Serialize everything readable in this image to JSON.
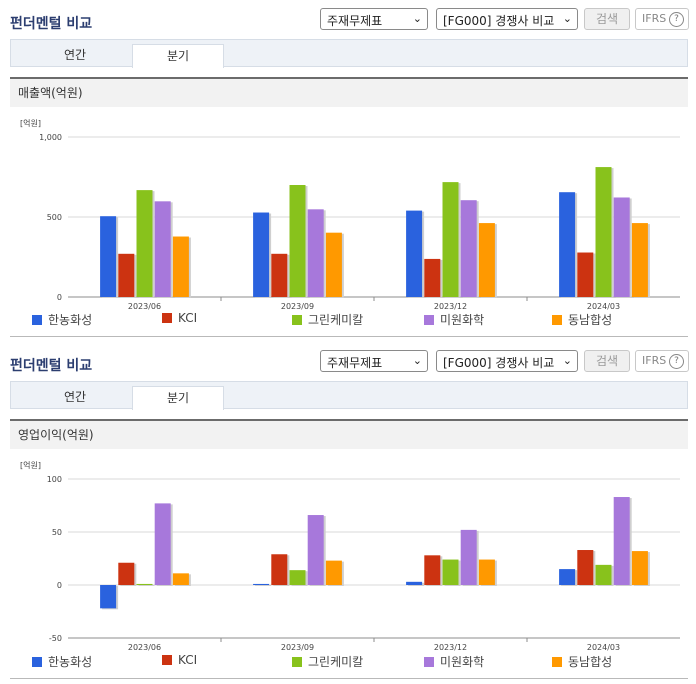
{
  "panels": [
    {
      "title": "펀더멘털 비교",
      "select_statement": "주재무제표",
      "select_compare": "[FG000] 경쟁사 비교",
      "search_label": "검색",
      "ifrs_label": "IFRS",
      "help_glyph": "?",
      "tabs": [
        {
          "label": "연간"
        },
        {
          "label": "분기"
        }
      ],
      "active_tab": 1,
      "metric_label": "매출액(억원)"
    },
    {
      "title": "펀더멘털 비교",
      "select_statement": "주재무제표",
      "select_compare": "[FG000] 경쟁사 비교",
      "search_label": "검색",
      "ifrs_label": "IFRS",
      "help_glyph": "?",
      "tabs": [
        {
          "label": "연간"
        },
        {
          "label": "분기"
        }
      ],
      "active_tab": 1,
      "metric_label": "영업이익(억원)"
    }
  ],
  "colors": {
    "series": [
      "#2a62de",
      "#cc3311",
      "#88c21c",
      "#a778db",
      "#ff9900"
    ],
    "grid": "#d9d9d9",
    "axis": "#8c8c8c"
  },
  "chart_data": [
    {
      "type": "bar",
      "unit_label": "[억원]",
      "categories": [
        "2023/06",
        "2023/09",
        "2023/12",
        "2024/03"
      ],
      "ylim": [
        0,
        1000
      ],
      "yticks": [
        0,
        500,
        1000
      ],
      "ytick_labels": [
        "0",
        "500",
        "1,000"
      ],
      "grid": true,
      "legend": "bottom",
      "series": [
        {
          "name": "한농화성",
          "values": [
            505,
            528,
            540,
            655
          ]
        },
        {
          "name": "KCI",
          "values": [
            270,
            270,
            238,
            278
          ]
        },
        {
          "name": "그린케미칼",
          "values": [
            668,
            700,
            718,
            812
          ]
        },
        {
          "name": "미원화학",
          "values": [
            598,
            548,
            605,
            622
          ]
        },
        {
          "name": "동남합성",
          "values": [
            378,
            402,
            462,
            462
          ]
        }
      ]
    },
    {
      "type": "bar",
      "unit_label": "[억원]",
      "categories": [
        "2023/06",
        "2023/09",
        "2023/12",
        "2024/03"
      ],
      "ylim": [
        -50,
        100
      ],
      "yticks": [
        -50,
        0,
        50,
        100
      ],
      "ytick_labels": [
        "-50",
        "0",
        "50",
        "100"
      ],
      "grid": true,
      "legend": "bottom",
      "series": [
        {
          "name": "한농화성",
          "values": [
            -22,
            1,
            3,
            15
          ]
        },
        {
          "name": "KCI",
          "values": [
            21,
            29,
            28,
            33
          ]
        },
        {
          "name": "그린케미칼",
          "values": [
            1,
            14,
            24,
            19
          ]
        },
        {
          "name": "미원화학",
          "values": [
            77,
            66,
            52,
            83
          ]
        },
        {
          "name": "동남합성",
          "values": [
            11,
            23,
            24,
            32
          ]
        }
      ]
    }
  ]
}
